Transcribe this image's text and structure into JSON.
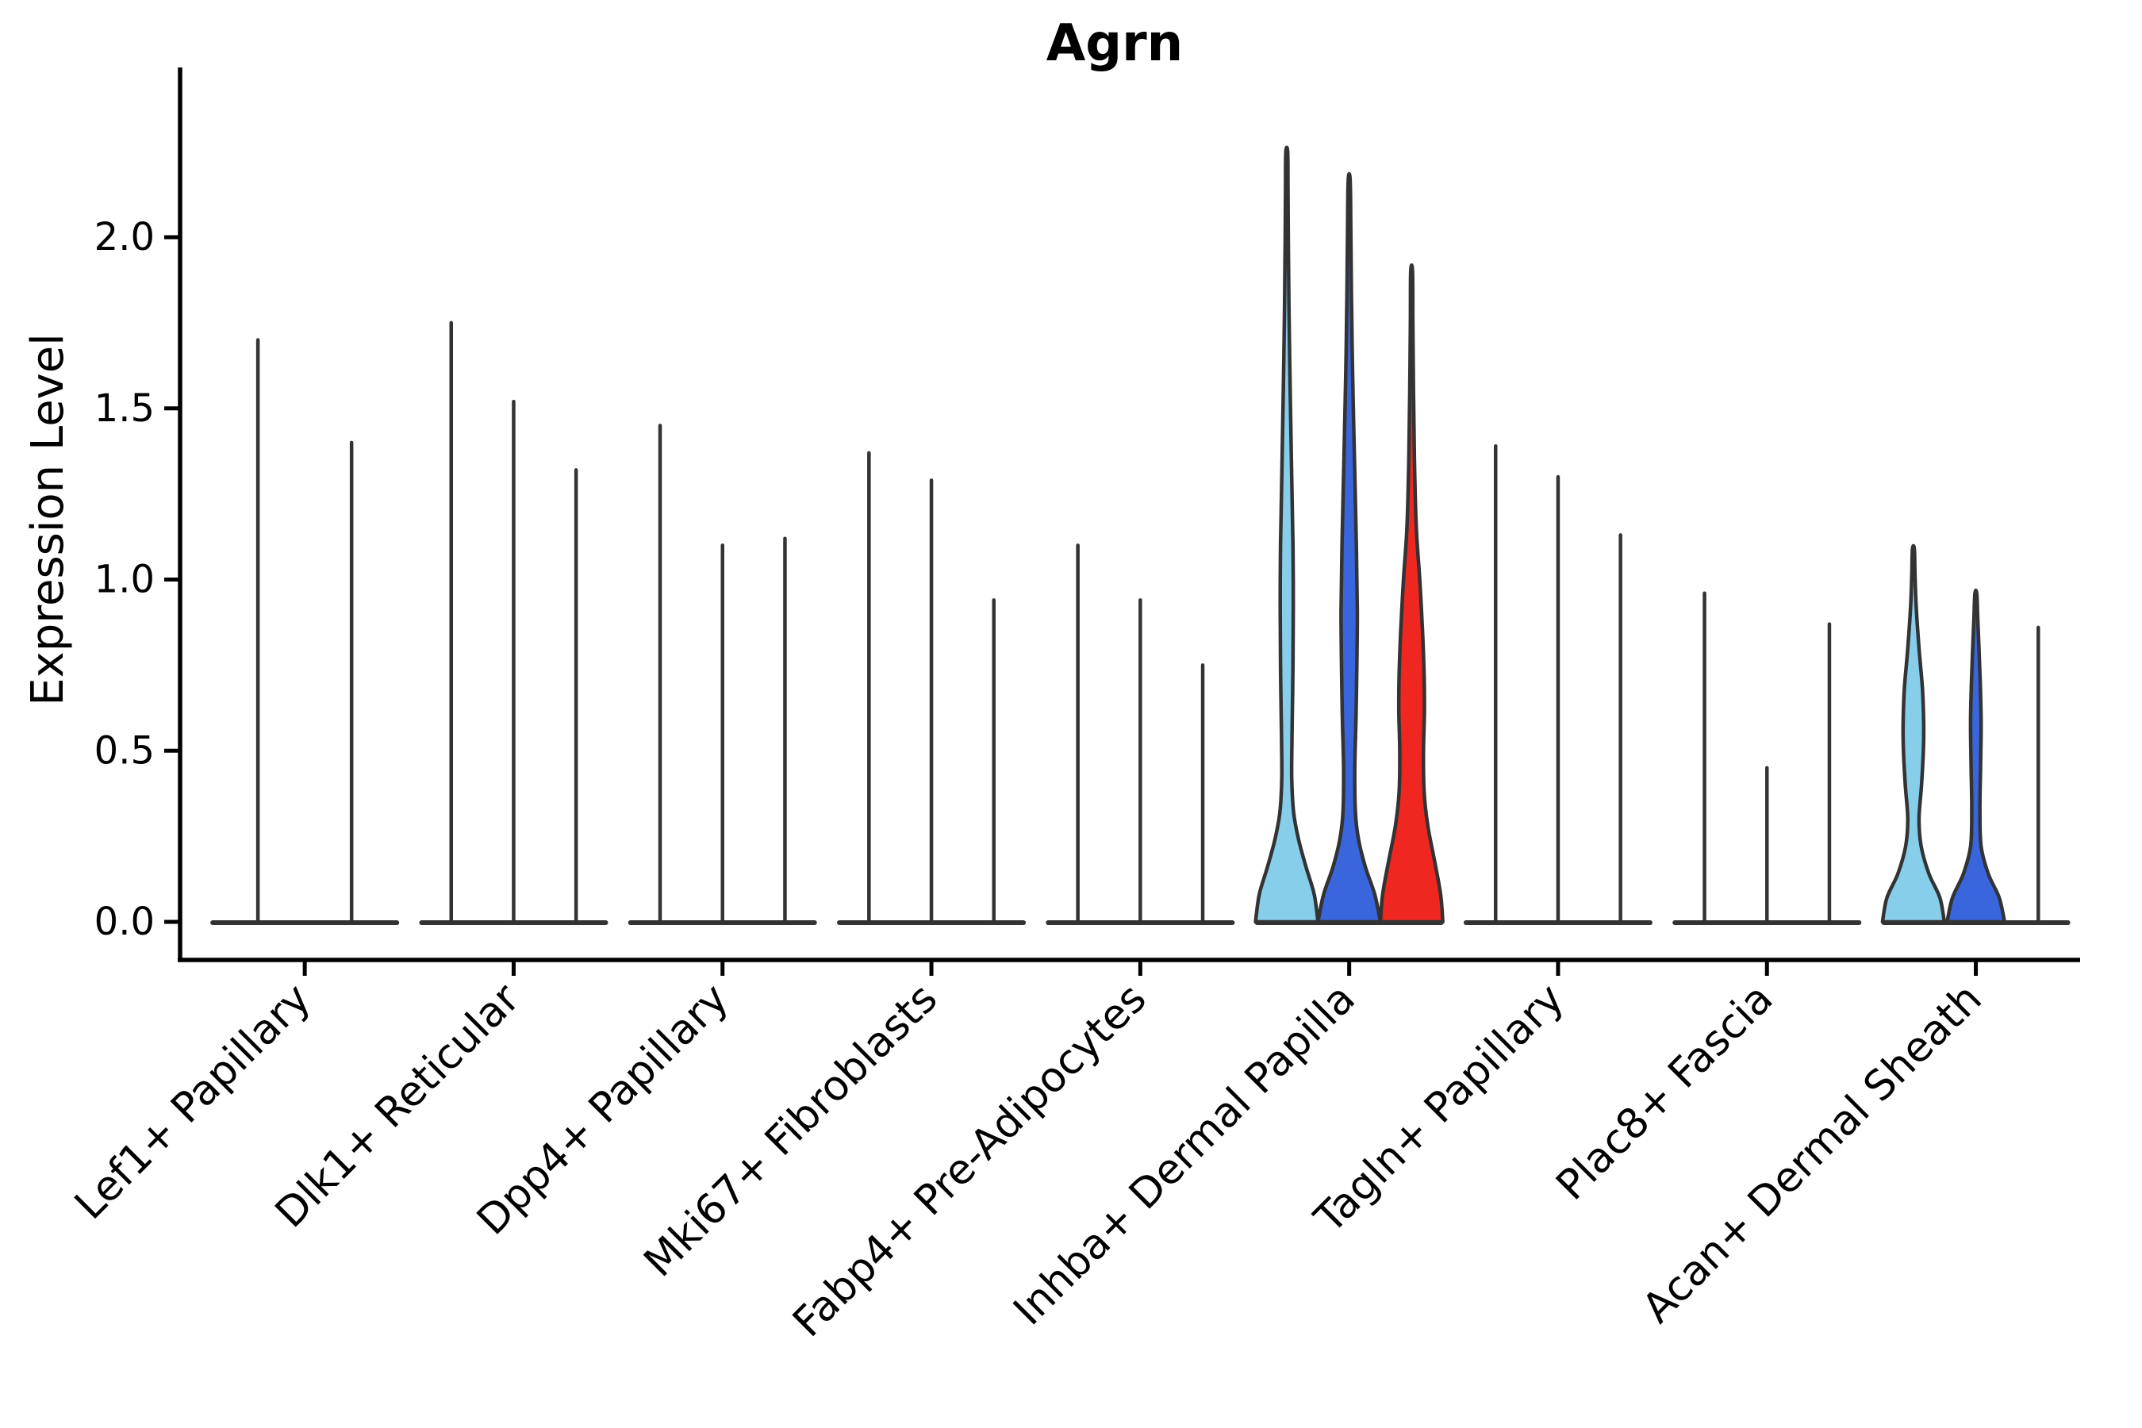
{
  "figure": {
    "title": "Agrn",
    "ylabel": "Expression Level"
  },
  "chart_data": {
    "type": "violin",
    "title": "Agrn",
    "xlabel": "",
    "ylabel": "Expression Level",
    "ylim": [
      0,
      2.35
    ],
    "yticks": [
      0.0,
      0.5,
      1.0,
      1.5,
      2.0
    ],
    "grid": false,
    "legend": "none",
    "edge_color": "#333333",
    "axis_color": "#000000",
    "palette": {
      "light_blue": "#87CEEB",
      "blue": "#3A66DD",
      "red": "#F02720",
      "spike": "#333333"
    },
    "categories": [
      "Lef1+ Papillary",
      "Dlk1+ Reticular",
      "Dpp4+ Papillary",
      "Mki67+ Fibroblasts",
      "Fabp4+ Pre-Adipocytes",
      "Inhba+ Dermal Papilla",
      "Tagln+ Papillary",
      "Plac8+ Fascia",
      "Acan+ Dermal Sheath"
    ],
    "groups": [
      {
        "category": "Lef1+ Papillary",
        "violins": [
          {
            "max": 1.7,
            "style": "spike"
          },
          {
            "max": 1.4,
            "style": "spike"
          }
        ]
      },
      {
        "category": "Dlk1+ Reticular",
        "violins": [
          {
            "max": 1.75,
            "style": "spike"
          },
          {
            "max": 1.52,
            "style": "spike"
          },
          {
            "max": 1.32,
            "style": "spike"
          }
        ]
      },
      {
        "category": "Dpp4+ Papillary",
        "violins": [
          {
            "max": 1.45,
            "style": "spike"
          },
          {
            "max": 1.1,
            "style": "spike"
          },
          {
            "max": 1.12,
            "style": "spike"
          }
        ]
      },
      {
        "category": "Mki67+ Fibroblasts",
        "violins": [
          {
            "max": 1.37,
            "style": "spike"
          },
          {
            "max": 1.29,
            "style": "spike"
          },
          {
            "max": 0.94,
            "style": "spike"
          }
        ]
      },
      {
        "category": "Fabp4+ Pre-Adipocytes",
        "violins": [
          {
            "max": 1.1,
            "style": "spike"
          },
          {
            "max": 0.94,
            "style": "spike"
          },
          {
            "max": 0.75,
            "style": "spike"
          }
        ]
      },
      {
        "category": "Inhba+ Dermal Papilla",
        "violins": [
          {
            "max": 2.25,
            "style": "shaped",
            "color": "#87CEEB",
            "profile": [
              [
                0,
                1.0
              ],
              [
                0.08,
                0.88
              ],
              [
                0.16,
                0.62
              ],
              [
                0.24,
                0.38
              ],
              [
                0.32,
                0.22
              ],
              [
                0.42,
                0.16
              ],
              [
                0.55,
                0.17
              ],
              [
                0.75,
                0.2
              ],
              [
                0.93,
                0.21
              ],
              [
                1.1,
                0.2
              ],
              [
                1.3,
                0.16
              ],
              [
                1.55,
                0.11
              ],
              [
                1.8,
                0.07
              ],
              [
                2.0,
                0.05
              ],
              [
                2.15,
                0.04
              ],
              [
                2.25,
                0.03
              ]
            ]
          },
          {
            "max": 2.17,
            "style": "shaped",
            "color": "#3A66DD",
            "profile": [
              [
                0,
                1.0
              ],
              [
                0.08,
                0.82
              ],
              [
                0.16,
                0.52
              ],
              [
                0.24,
                0.3
              ],
              [
                0.32,
                0.2
              ],
              [
                0.45,
                0.18
              ],
              [
                0.6,
                0.22
              ],
              [
                0.78,
                0.25
              ],
              [
                0.91,
                0.26
              ],
              [
                1.1,
                0.23
              ],
              [
                1.35,
                0.17
              ],
              [
                1.6,
                0.11
              ],
              [
                1.85,
                0.07
              ],
              [
                2.05,
                0.05
              ],
              [
                2.17,
                0.03
              ]
            ]
          },
          {
            "max": 1.9,
            "style": "shaped",
            "color": "#F02720",
            "profile": [
              [
                0,
                1.0
              ],
              [
                0.08,
                0.93
              ],
              [
                0.18,
                0.73
              ],
              [
                0.28,
                0.52
              ],
              [
                0.38,
                0.4
              ],
              [
                0.5,
                0.38
              ],
              [
                0.62,
                0.41
              ],
              [
                0.72,
                0.4
              ],
              [
                0.85,
                0.35
              ],
              [
                1.0,
                0.26
              ],
              [
                1.15,
                0.15
              ],
              [
                1.35,
                0.09
              ],
              [
                1.55,
                0.06
              ],
              [
                1.75,
                0.04
              ],
              [
                1.9,
                0.03
              ]
            ]
          }
        ]
      },
      {
        "category": "Tagln+ Papillary",
        "violins": [
          {
            "max": 1.39,
            "style": "spike"
          },
          {
            "max": 1.3,
            "style": "spike"
          },
          {
            "max": 1.13,
            "style": "spike"
          }
        ]
      },
      {
        "category": "Plac8+ Fascia",
        "violins": [
          {
            "max": 0.96,
            "style": "spike"
          },
          {
            "max": 0.45,
            "style": "spike"
          },
          {
            "max": 0.87,
            "style": "spike"
          }
        ]
      },
      {
        "category": "Acan+ Dermal Sheath",
        "violins": [
          {
            "max": 1.09,
            "style": "shaped",
            "color": "#87CEEB",
            "profile": [
              [
                0,
                0.99
              ],
              [
                0.07,
                0.85
              ],
              [
                0.14,
                0.5
              ],
              [
                0.22,
                0.25
              ],
              [
                0.3,
                0.18
              ],
              [
                0.4,
                0.26
              ],
              [
                0.5,
                0.32
              ],
              [
                0.58,
                0.33
              ],
              [
                0.68,
                0.29
              ],
              [
                0.8,
                0.18
              ],
              [
                0.92,
                0.09
              ],
              [
                1.02,
                0.05
              ],
              [
                1.09,
                0.03
              ]
            ]
          },
          {
            "max": 0.96,
            "style": "shaped",
            "color": "#3A66DD",
            "profile": [
              [
                0,
                0.92
              ],
              [
                0.07,
                0.75
              ],
              [
                0.14,
                0.4
              ],
              [
                0.22,
                0.17
              ],
              [
                0.32,
                0.13
              ],
              [
                0.45,
                0.15
              ],
              [
                0.58,
                0.17
              ],
              [
                0.7,
                0.14
              ],
              [
                0.8,
                0.1
              ],
              [
                0.89,
                0.06
              ],
              [
                0.96,
                0.03
              ]
            ]
          },
          {
            "max": 0.86,
            "style": "spike"
          }
        ]
      }
    ]
  }
}
